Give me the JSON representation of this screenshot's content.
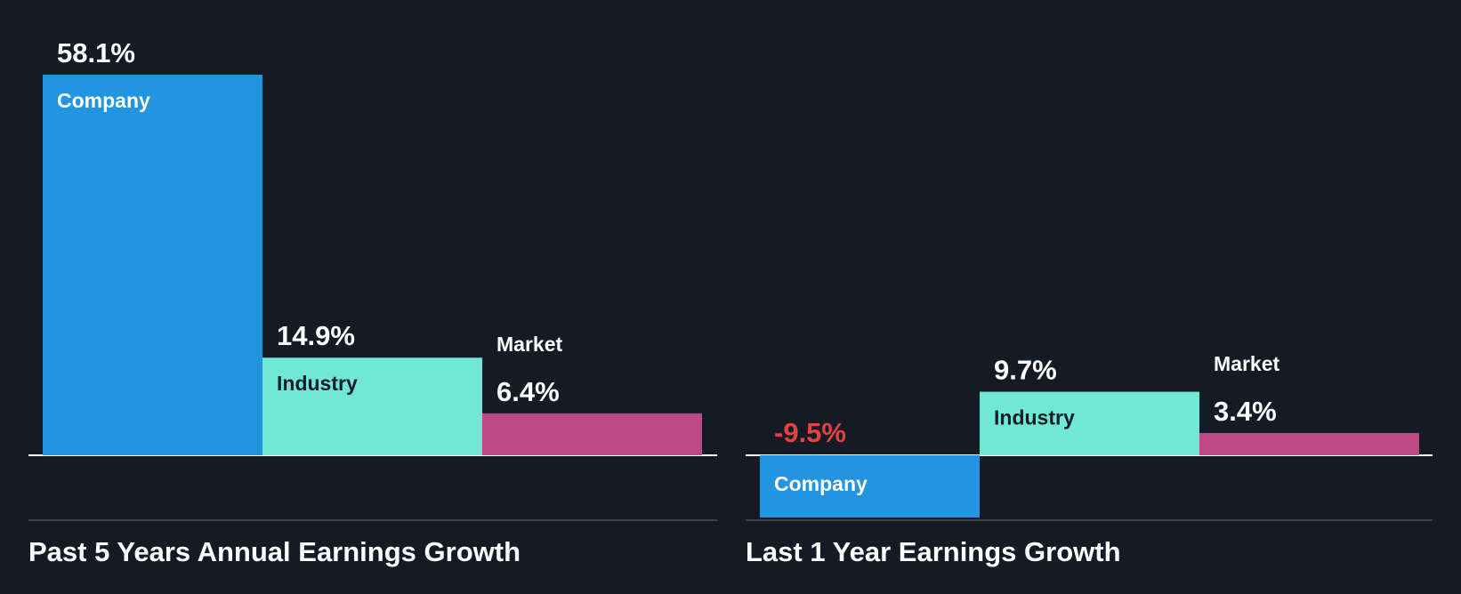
{
  "colors": {
    "background": "#151b24",
    "company": "#2394df",
    "industry": "#71e7d6",
    "market": "#bb4a85",
    "negative_text": "#e64141",
    "positive_text": "#ffffff",
    "inner_label_dark": "#151b24"
  },
  "chart_data": [
    {
      "type": "bar",
      "title": "Past 5 Years Annual Earnings Growth",
      "categories": [
        "Company",
        "Industry",
        "Market"
      ],
      "values": [
        58.1,
        14.9,
        6.4
      ],
      "value_labels": [
        "58.1%",
        "14.9%",
        "6.4%"
      ],
      "unit": "%",
      "ylim": [
        0,
        58.1
      ],
      "grid": false,
      "legend": "none"
    },
    {
      "type": "bar",
      "title": "Last 1 Year Earnings Growth",
      "categories": [
        "Company",
        "Industry",
        "Market"
      ],
      "values": [
        -9.5,
        9.7,
        3.4
      ],
      "value_labels": [
        "-9.5%",
        "9.7%",
        "3.4%"
      ],
      "unit": "%",
      "ylim": [
        -9.5,
        9.7
      ],
      "grid": false,
      "legend": "none"
    }
  ]
}
